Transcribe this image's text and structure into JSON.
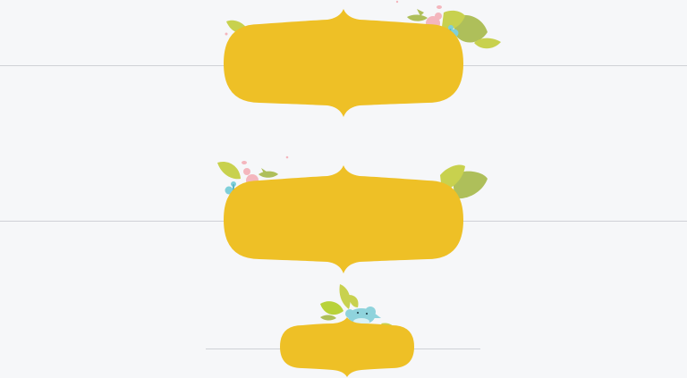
{
  "colors": {
    "background": "#f6f7f9",
    "label_fill": "#eec026",
    "divider": "#cfd1d6",
    "leaf_light": "#c8d14e",
    "leaf_dark": "#aebf5a",
    "leaf_lime": "#b8d23a",
    "flower_pink": "#f4b6bd",
    "butterfly_blue": "#7fcfd9",
    "bird_blue": "#8fd3dc"
  },
  "decorations": {
    "label_1": [
      "leaf-cluster",
      "pink-flower",
      "blue-butterfly"
    ],
    "label_2": [
      "leaf-cluster",
      "pink-flower",
      "blue-butterfly"
    ],
    "label_3": [
      "leaf-cluster",
      "blue-bird"
    ]
  }
}
